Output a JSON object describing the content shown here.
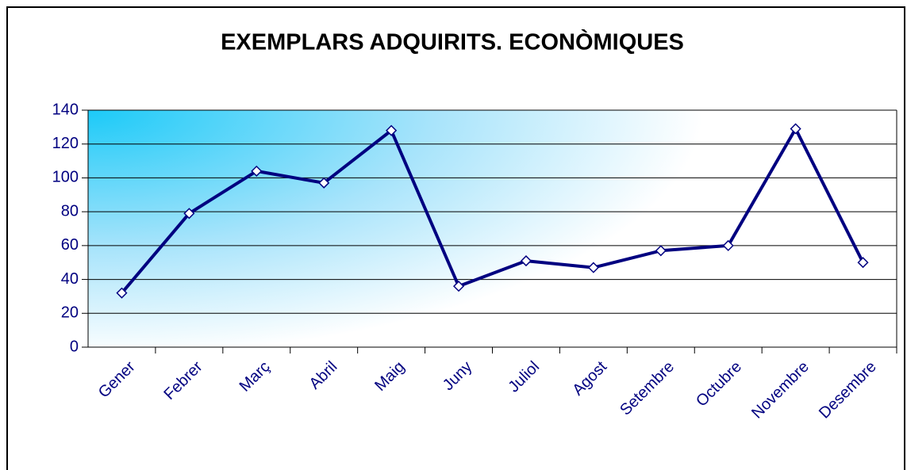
{
  "chart_data": {
    "type": "line",
    "title": "EXEMPLARS ADQUIRITS. ECONÒMIQUES",
    "categories": [
      "Gener",
      "Febrer",
      "Març",
      "Abril",
      "Maig",
      "Juny",
      "Juliol",
      "Agost",
      "Setembre",
      "Octubre",
      "Novembre",
      "Desembre"
    ],
    "values": [
      32,
      79,
      104,
      97,
      128,
      36,
      51,
      47,
      57,
      60,
      129,
      50
    ],
    "color": "#000080",
    "ylim": [
      0,
      140
    ],
    "yticks": [
      0,
      20,
      40,
      60,
      80,
      100,
      120,
      140
    ],
    "grid": true
  }
}
